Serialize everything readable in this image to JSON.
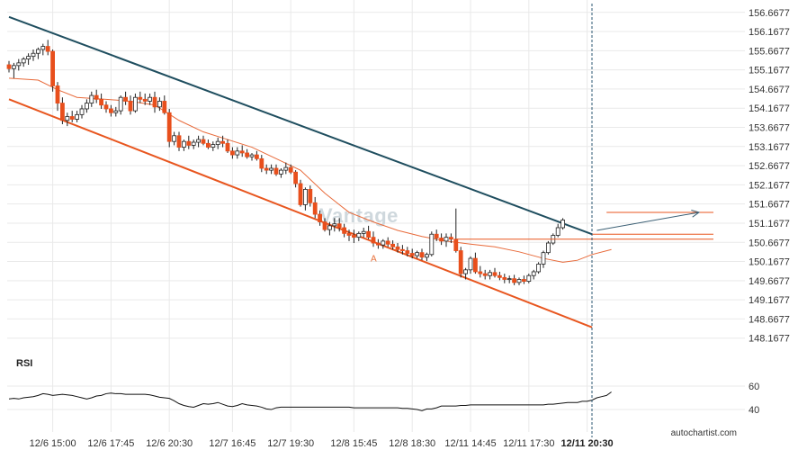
{
  "app": {
    "watermark": "Vantage",
    "brand": "autochartist.com",
    "rsi_label": "RSI",
    "point_label": "A"
  },
  "colors": {
    "candle_up": "#ffffff",
    "candle_down": "#e84f1c",
    "candle_outline": "#222222",
    "resistance": "#1f4e5f",
    "support": "#e8561f",
    "moving_average": "#e86a3a",
    "level_line": "#e8561f",
    "forecast_line": "#3b5f74",
    "rsi_line": "#111111",
    "grid": "#e9e9e9",
    "current_time_line": "#2a5670"
  },
  "chart_data": [
    {
      "type": "candlestick",
      "title": "",
      "y_ticks": [
        "156.6677",
        "156.1677",
        "155.6677",
        "155.1677",
        "154.6677",
        "154.1677",
        "153.6677",
        "153.1677",
        "152.6677",
        "152.1677",
        "151.6677",
        "151.1677",
        "150.6677",
        "150.1677",
        "149.6677",
        "149.1677",
        "148.6677",
        "148.1677"
      ],
      "ylim": [
        147.95,
        156.85
      ],
      "x_ticks": [
        "12/6 15:00",
        "12/6 17:45",
        "12/6 20:30",
        "12/7 16:45",
        "12/7 19:30",
        "12/8 15:45",
        "12/8 18:30",
        "12/11 14:45",
        "12/11 17:30",
        "12/11 20:30"
      ],
      "x_tick_bar_index": [
        9,
        21,
        33,
        46,
        58,
        71,
        83,
        95,
        107,
        119
      ],
      "highlight_x_tick": "12/11 20:30",
      "current_bar_index": 120,
      "candles": [
        [
          155.3,
          155.4,
          155.1,
          155.2
        ],
        [
          155.2,
          155.35,
          154.95,
          155.28
        ],
        [
          155.28,
          155.45,
          155.15,
          155.35
        ],
        [
          155.35,
          155.5,
          155.25,
          155.45
        ],
        [
          155.45,
          155.6,
          155.3,
          155.52
        ],
        [
          155.52,
          155.7,
          155.4,
          155.6
        ],
        [
          155.6,
          155.75,
          155.45,
          155.7
        ],
        [
          155.7,
          155.85,
          155.55,
          155.78
        ],
        [
          155.78,
          155.95,
          155.55,
          155.65
        ],
        [
          155.65,
          155.7,
          154.6,
          154.75
        ],
        [
          154.75,
          154.85,
          154.1,
          154.3
        ],
        [
          154.3,
          154.45,
          153.75,
          153.85
        ],
        [
          153.85,
          154.05,
          153.7,
          153.95
        ],
        [
          153.95,
          154.1,
          153.8,
          153.88
        ],
        [
          153.88,
          154.1,
          153.8,
          154.0
        ],
        [
          154.0,
          154.25,
          153.9,
          154.15
        ],
        [
          154.15,
          154.4,
          154.05,
          154.3
        ],
        [
          154.3,
          154.6,
          154.2,
          154.5
        ],
        [
          154.5,
          154.65,
          154.3,
          154.4
        ],
        [
          154.4,
          154.55,
          154.15,
          154.25
        ],
        [
          154.25,
          154.35,
          154.05,
          154.15
        ],
        [
          154.15,
          154.25,
          153.95,
          154.05
        ],
        [
          154.05,
          154.2,
          153.95,
          154.1
        ],
        [
          154.1,
          154.5,
          154.0,
          154.45
        ],
        [
          154.45,
          154.6,
          154.25,
          154.35
        ],
        [
          154.35,
          154.5,
          154.0,
          154.1
        ],
        [
          154.1,
          154.55,
          154.05,
          154.45
        ],
        [
          154.45,
          154.6,
          154.3,
          154.4
        ],
        [
          154.4,
          154.55,
          154.25,
          154.35
        ],
        [
          154.35,
          154.55,
          154.25,
          154.45
        ],
        [
          154.45,
          154.6,
          154.05,
          154.2
        ],
        [
          154.2,
          154.45,
          154.1,
          154.35
        ],
        [
          154.35,
          154.5,
          154.0,
          154.05
        ],
        [
          154.05,
          154.15,
          153.15,
          153.3
        ],
        [
          153.3,
          153.55,
          153.2,
          153.45
        ],
        [
          153.45,
          153.55,
          153.05,
          153.15
        ],
        [
          153.15,
          153.35,
          153.05,
          153.3
        ],
        [
          153.3,
          153.45,
          153.1,
          153.2
        ],
        [
          153.2,
          153.35,
          153.1,
          153.28
        ],
        [
          153.28,
          153.45,
          153.15,
          153.35
        ],
        [
          153.35,
          153.45,
          153.2,
          153.25
        ],
        [
          153.25,
          153.35,
          153.1,
          153.15
        ],
        [
          153.15,
          153.3,
          153.05,
          153.22
        ],
        [
          153.22,
          153.4,
          153.1,
          153.3
        ],
        [
          153.3,
          153.45,
          153.15,
          153.25
        ],
        [
          153.25,
          153.35,
          153.0,
          153.05
        ],
        [
          153.05,
          153.15,
          152.85,
          152.95
        ],
        [
          152.95,
          153.15,
          152.85,
          153.05
        ],
        [
          153.05,
          153.2,
          152.9,
          153.0
        ],
        [
          153.0,
          153.1,
          152.85,
          152.9
        ],
        [
          152.9,
          153.0,
          152.8,
          152.95
        ],
        [
          152.95,
          153.05,
          152.8,
          152.85
        ],
        [
          152.85,
          152.95,
          152.5,
          152.6
        ],
        [
          152.6,
          152.7,
          152.45,
          152.55
        ],
        [
          152.55,
          152.7,
          152.45,
          152.6
        ],
        [
          152.6,
          152.7,
          152.4,
          152.45
        ],
        [
          152.45,
          152.6,
          152.35,
          152.55
        ],
        [
          152.55,
          152.75,
          152.45,
          152.62
        ],
        [
          152.62,
          152.7,
          152.45,
          152.5
        ],
        [
          152.5,
          152.55,
          152.1,
          152.2
        ],
        [
          152.2,
          152.3,
          151.6,
          151.65
        ],
        [
          151.65,
          152.1,
          151.5,
          152.05
        ],
        [
          152.05,
          152.15,
          151.6,
          151.7
        ],
        [
          151.7,
          151.85,
          151.3,
          151.4
        ],
        [
          151.4,
          151.5,
          151.1,
          151.2
        ],
        [
          151.2,
          151.3,
          150.95,
          151.0
        ],
        [
          151.0,
          151.2,
          150.85,
          151.1
        ],
        [
          151.1,
          151.3,
          150.95,
          151.15
        ],
        [
          151.15,
          151.3,
          150.95,
          151.05
        ],
        [
          151.05,
          151.15,
          150.8,
          150.9
        ],
        [
          150.9,
          151.0,
          150.7,
          150.85
        ],
        [
          150.85,
          151.0,
          150.65,
          150.8
        ],
        [
          150.8,
          150.95,
          150.7,
          150.9
        ],
        [
          150.9,
          151.05,
          150.8,
          150.95
        ],
        [
          150.95,
          151.1,
          150.75,
          150.8
        ],
        [
          150.8,
          150.95,
          150.55,
          150.65
        ],
        [
          150.65,
          150.75,
          150.5,
          150.6
        ],
        [
          150.6,
          150.75,
          150.5,
          150.7
        ],
        [
          150.7,
          150.8,
          150.55,
          150.62
        ],
        [
          150.62,
          150.72,
          150.48,
          150.55
        ],
        [
          150.55,
          150.65,
          150.4,
          150.48
        ],
        [
          150.48,
          150.6,
          150.35,
          150.45
        ],
        [
          150.45,
          150.55,
          150.3,
          150.38
        ],
        [
          150.38,
          150.5,
          150.25,
          150.32
        ],
        [
          150.32,
          150.45,
          150.25,
          150.4
        ],
        [
          150.4,
          150.5,
          150.2,
          150.28
        ],
        [
          150.28,
          150.4,
          150.18,
          150.35
        ],
        [
          150.35,
          150.95,
          150.3,
          150.88
        ],
        [
          150.88,
          151.0,
          150.7,
          150.78
        ],
        [
          150.78,
          150.9,
          150.6,
          150.7
        ],
        [
          150.7,
          150.9,
          150.55,
          150.8
        ],
        [
          150.8,
          150.9,
          150.65,
          150.75
        ],
        [
          150.75,
          151.55,
          150.4,
          150.45
        ],
        [
          150.45,
          150.55,
          149.75,
          149.85
        ],
        [
          149.85,
          150.0,
          149.7,
          149.95
        ],
        [
          149.95,
          150.3,
          149.85,
          150.25
        ],
        [
          150.25,
          150.4,
          149.85,
          149.9
        ],
        [
          149.9,
          150.05,
          149.75,
          149.85
        ],
        [
          149.85,
          149.95,
          149.7,
          149.8
        ],
        [
          149.8,
          149.95,
          149.7,
          149.88
        ],
        [
          149.88,
          150.0,
          149.75,
          149.8
        ],
        [
          149.8,
          149.9,
          149.68,
          149.75
        ],
        [
          149.75,
          149.85,
          149.6,
          149.7
        ],
        [
          149.7,
          149.8,
          149.6,
          149.72
        ],
        [
          149.72,
          149.82,
          149.55,
          149.62
        ],
        [
          149.62,
          149.75,
          149.55,
          149.7
        ],
        [
          149.7,
          149.8,
          149.58,
          149.65
        ],
        [
          149.65,
          149.85,
          149.6,
          149.8
        ],
        [
          149.8,
          149.95,
          149.7,
          149.9
        ],
        [
          149.9,
          150.15,
          149.85,
          150.1
        ],
        [
          150.1,
          150.45,
          150.0,
          150.4
        ],
        [
          150.4,
          150.7,
          150.35,
          150.65
        ],
        [
          150.65,
          150.9,
          150.6,
          150.85
        ],
        [
          150.85,
          151.15,
          150.8,
          151.05
        ],
        [
          151.05,
          151.3,
          151.0,
          151.25
        ]
      ],
      "moving_average": [
        [
          0,
          154.95
        ],
        [
          6,
          154.9
        ],
        [
          10,
          154.65
        ],
        [
          14,
          154.45
        ],
        [
          20,
          154.4
        ],
        [
          25,
          154.35
        ],
        [
          30,
          154.25
        ],
        [
          35,
          153.85
        ],
        [
          40,
          153.55
        ],
        [
          45,
          153.35
        ],
        [
          50,
          153.15
        ],
        [
          55,
          152.85
        ],
        [
          60,
          152.55
        ],
        [
          65,
          151.95
        ],
        [
          70,
          151.45
        ],
        [
          75,
          151.2
        ],
        [
          80,
          150.98
        ],
        [
          85,
          150.82
        ],
        [
          90,
          150.7
        ],
        [
          95,
          150.62
        ],
        [
          100,
          150.55
        ],
        [
          105,
          150.42
        ],
        [
          110,
          150.25
        ],
        [
          114,
          150.15
        ],
        [
          117,
          150.2
        ],
        [
          120,
          150.35
        ],
        [
          124,
          150.48
        ]
      ],
      "resistance_line": {
        "start": [
          0,
          156.55
        ],
        "end": [
          120,
          150.88
        ]
      },
      "support_line": {
        "start": [
          0,
          154.4
        ],
        "end": [
          120,
          148.45
        ]
      },
      "level_lines": [
        {
          "value": 150.88,
          "from_index": 120,
          "to_index": 145
        },
        {
          "value": 150.75,
          "from_index": 92,
          "to_index": 145
        },
        {
          "value": 151.45,
          "from_index": 123,
          "to_index": 145
        }
      ],
      "forecast_arrow": {
        "start": [
          121,
          150.98
        ],
        "end": [
          145,
          151.45
        ]
      },
      "point_a_index": 75,
      "rsi": {
        "y_ticks": [
          "60",
          "40"
        ],
        "ylim": [
          27,
          73
        ],
        "values": [
          49,
          49.5,
          49,
          50,
          50.5,
          51,
          52,
          53.5,
          53,
          52,
          52.5,
          53,
          52.5,
          52,
          51,
          50,
          49,
          50,
          51.5,
          52,
          53.5,
          54,
          53.5,
          53.5,
          53,
          53,
          53,
          53,
          53,
          52.5,
          51.5,
          50.5,
          50,
          49.5,
          47.5,
          45,
          43.5,
          42.5,
          42,
          43.5,
          45,
          44.5,
          45,
          46,
          44.5,
          43,
          42.5,
          43.5,
          45,
          44,
          43.5,
          43,
          42,
          40.5,
          40,
          41.5,
          42,
          42,
          42,
          42,
          42,
          42,
          42,
          42,
          42,
          42,
          42,
          42,
          42,
          42,
          42,
          41.5,
          41.5,
          41.5,
          41.5,
          41.5,
          41.5,
          41.5,
          41.5,
          41.5,
          41.5,
          41,
          41,
          40.5,
          40,
          39,
          40.5,
          40.5,
          41.5,
          43,
          43,
          43,
          43,
          43.5,
          43.5,
          44,
          44,
          44,
          44,
          44,
          44,
          44,
          44,
          44,
          44,
          44,
          44,
          44,
          44,
          44,
          44,
          44.5,
          44.5,
          45,
          45.5,
          46,
          46,
          46,
          47,
          47,
          48,
          50,
          51,
          52,
          55
        ]
      }
    }
  ]
}
